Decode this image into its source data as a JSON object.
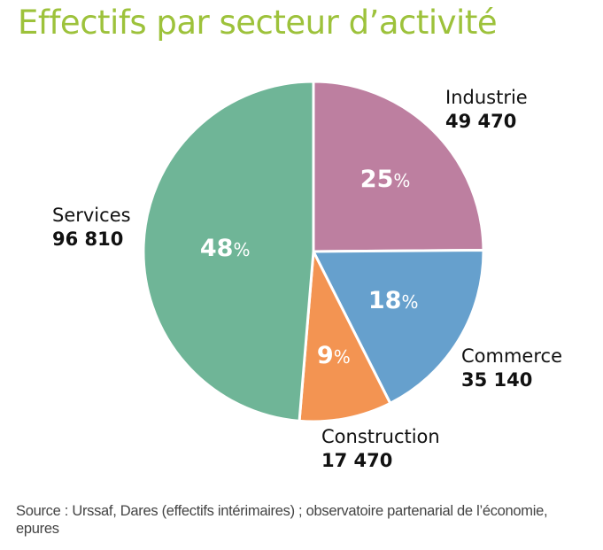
{
  "chart_data": {
    "type": "pie",
    "title": "Effectifs par secteur d’activité",
    "slices": [
      {
        "label": "Industrie",
        "value": 49470,
        "value_label": "49 470",
        "percent_label": "25",
        "color": "#bd7fa0"
      },
      {
        "label": "Commerce",
        "value": 35140,
        "value_label": "35 140",
        "percent_label": "18",
        "color": "#66a0cd"
      },
      {
        "label": "Construction",
        "value": 17470,
        "value_label": "17 470",
        "percent_label": "9",
        "color": "#f39452"
      },
      {
        "label": "Services",
        "value": 96810,
        "value_label": "96 810",
        "percent_label": "48",
        "color": "#6fb597"
      }
    ],
    "start_angle_deg": 0,
    "direction": "clockwise",
    "percent_suffix": "%",
    "source": "Source : Urssaf, Dares (effectifs intérimaires) ; observatoire partenarial de l’économie, epures"
  }
}
